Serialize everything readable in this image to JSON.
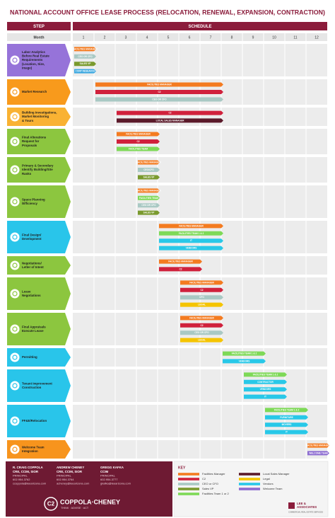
{
  "title": "NATIONAL ACCOUNT OFFICE LEASE PROCESS (RELOCATION, RENEWAL, EXPANSION, CONTRACTION)",
  "header": {
    "step": "STEP",
    "schedule": "SCHEDULE",
    "month_label": "Month",
    "months": [
      1,
      2,
      3,
      4,
      5,
      6,
      7,
      8,
      9,
      10,
      11,
      12
    ]
  },
  "steps": [
    {
      "label": [
        "Labor Analytics",
        "Before Real Estate",
        "Requirements",
        "(Location, Size,",
        "Image)"
      ],
      "color": "#9673d9",
      "bars": [
        {
          "text": "FACILITIES MANAGER",
          "color": "#f47b20",
          "from": 1,
          "to": 1
        },
        {
          "text": "CEO OR CFO",
          "color": "#a9c9c4",
          "from": 1,
          "to": 1
        },
        {
          "text": "SALES VP",
          "color": "#7a9a2e",
          "from": 1,
          "to": 1
        },
        {
          "text": "CORP RESEARCH",
          "color": "#3aa7e0",
          "from": 1,
          "to": 1
        }
      ]
    },
    {
      "label": [
        "Market Research"
      ],
      "color": "#f89a1c",
      "bars": [
        {
          "text": "FACILITIES MANAGER",
          "color": "#f47b20",
          "from": 2,
          "to": 7
        },
        {
          "text": "C2",
          "color": "#d0213c",
          "from": 2,
          "to": 7
        },
        {
          "text": "CEO OR CFO",
          "color": "#a9c9c4",
          "from": 2,
          "to": 7
        }
      ]
    },
    {
      "label": [
        "Building Investigations,",
        "Market Monitoring",
        "& Tours"
      ],
      "color": "#f9b233",
      "bars": [
        {
          "text": "C2",
          "color": "#d0213c",
          "from": 3,
          "to": 7
        },
        {
          "text": "LOCAL SALES MANAGER",
          "color": "#5b1a2a",
          "from": 3,
          "to": 7
        }
      ]
    },
    {
      "label": [
        "Final Alterations",
        "Request for",
        "Proposals"
      ],
      "color": "#8cc63f",
      "bars": [
        {
          "text": "FACILITIES MANAGER",
          "color": "#f47b20",
          "from": 3,
          "to": 4
        },
        {
          "text": "C2",
          "color": "#d0213c",
          "from": 3,
          "to": 4
        },
        {
          "text": "FACILITIES TEAM",
          "color": "#7ed957",
          "from": 3,
          "to": 4
        }
      ]
    },
    {
      "label": [
        "Primary & Secondary",
        "Identify Building/Site",
        "Ranks"
      ],
      "color": "#8cc63f",
      "bars": [
        {
          "text": "FACILITIES MANAGER",
          "color": "#f47b20",
          "from": 4,
          "to": 4
        },
        {
          "text": "CEO/CFO",
          "color": "#a9c9c4",
          "from": 4,
          "to": 4
        },
        {
          "text": "SALES VP",
          "color": "#7a9a2e",
          "from": 4,
          "to": 4
        }
      ]
    },
    {
      "label": [
        "Space Planning",
        "/Efficiency"
      ],
      "color": "#8cc63f",
      "bars": [
        {
          "text": "FACILITIES MANAGER",
          "color": "#f47b20",
          "from": 4,
          "to": 4
        },
        {
          "text": "FACILITIES TEAM",
          "color": "#7ed957",
          "from": 4,
          "to": 4
        },
        {
          "text": "CEO OR CFO",
          "color": "#a9c9c4",
          "from": 4,
          "to": 4
        },
        {
          "text": "SALES VP",
          "color": "#7a9a2e",
          "from": 4,
          "to": 4
        }
      ]
    },
    {
      "label": [
        "Final Design/",
        "Development"
      ],
      "color": "#29c5ea",
      "bars": [
        {
          "text": "FACILITIES MANAGER",
          "color": "#f47b20",
          "from": 5,
          "to": 7
        },
        {
          "text": "FACILITIES TEAM 1 & 2",
          "color": "#7ed957",
          "from": 5,
          "to": 7
        },
        {
          "text": "IT",
          "color": "#28c8e8",
          "from": 5,
          "to": 7
        },
        {
          "text": "VENDORS",
          "color": "#28c8e8",
          "from": 5,
          "to": 7
        }
      ]
    },
    {
      "label": [
        "Negotiations/",
        "Letter of Intent"
      ],
      "color": "#8cc63f",
      "bars": [
        {
          "text": "FACILITIES MANAGER",
          "color": "#f47b20",
          "from": 5,
          "to": 6
        },
        {
          "text": "C2",
          "color": "#d0213c",
          "from": 5,
          "to": 6
        }
      ]
    },
    {
      "label": [
        "Lease",
        "Negotiations"
      ],
      "color": "#8cc63f",
      "bars": [
        {
          "text": "FACILITIES MANAGER",
          "color": "#f47b20",
          "from": 6,
          "to": 7
        },
        {
          "text": "C2",
          "color": "#d0213c",
          "from": 6,
          "to": 7
        },
        {
          "text": "CFO",
          "color": "#a9c9c4",
          "from": 6,
          "to": 7
        },
        {
          "text": "LEGAL",
          "color": "#f5c400",
          "from": 6,
          "to": 7
        }
      ]
    },
    {
      "label": [
        "Final Appraisals",
        "Execute Lease"
      ],
      "color": "#8cc63f",
      "bars": [
        {
          "text": "FACILITIES MANAGER",
          "color": "#f47b20",
          "from": 6,
          "to": 7
        },
        {
          "text": "C2",
          "color": "#d0213c",
          "from": 6,
          "to": 7
        },
        {
          "text": "CEO OR CFO",
          "color": "#a9c9c4",
          "from": 6,
          "to": 7
        },
        {
          "text": "LEGAL",
          "color": "#f5c400",
          "from": 6,
          "to": 7
        }
      ]
    },
    {
      "label": [
        "Permitting"
      ],
      "color": "#29c5ea",
      "bars": [
        {
          "text": "FACILITIES TEAM 1 & 2",
          "color": "#7ed957",
          "from": 8,
          "to": 9
        },
        {
          "text": "VENDORS",
          "color": "#28c8e8",
          "from": 8,
          "to": 9
        }
      ]
    },
    {
      "label": [
        "Tenant Improvement",
        "Construction"
      ],
      "color": "#29c5ea",
      "bars": [
        {
          "text": "FACILITIES TEAM 1 & 2",
          "color": "#7ed957",
          "from": 9,
          "to": 10
        },
        {
          "text": "CONTRACTOR",
          "color": "#28c8e8",
          "from": 9,
          "to": 10
        },
        {
          "text": "VENDORS",
          "color": "#28c8e8",
          "from": 9,
          "to": 10
        },
        {
          "text": "IT",
          "color": "#28c8e8",
          "from": 9,
          "to": 10
        }
      ]
    },
    {
      "label": [
        "FF&E/Relocation"
      ],
      "color": "#29c5ea",
      "bars": [
        {
          "text": "FACILITIES TEAM 1 & 2",
          "color": "#7ed957",
          "from": 10,
          "to": 11
        },
        {
          "text": "FURNITURE",
          "color": "#28c8e8",
          "from": 10,
          "to": 11
        },
        {
          "text": "MOVERS",
          "color": "#28c8e8",
          "from": 10,
          "to": 11
        },
        {
          "text": "IT",
          "color": "#28c8e8",
          "from": 10,
          "to": 11
        }
      ]
    },
    {
      "label": [
        "Welcome Team",
        "Integration"
      ],
      "color": "#f7941d",
      "bars": [
        {
          "text": "FACILITIES MANAGER",
          "color": "#f47b20",
          "from": 12,
          "to": 12
        },
        {
          "text": "WELCOME TEAM",
          "color": "#8c6bd1",
          "from": 12,
          "to": 12
        }
      ]
    }
  ],
  "footer": {
    "contacts": [
      {
        "lines": [
          "R. CRAIG COPPOLA",
          "CRE, CCIM, SIOR",
          "PRINCIPAL",
          "602.954.3762",
          "ccoppola@leearizona.com"
        ]
      },
      {
        "lines": [
          "ANDREW CHENEY",
          "CRE, CCIM, SIOR",
          "PRINCIPAL",
          "602.954.3764",
          "acheney@leearizona.com"
        ]
      },
      {
        "lines": [
          "GREGG KAFKA",
          "CCIM",
          "PRINCIPAL",
          "602.954.3777",
          "gkafka@leearizona.com"
        ]
      }
    ],
    "logo_mark": "C2",
    "logo": "COPPOLA·CHENEY",
    "tagline": "THINK · ADVISE · ACT",
    "key_title": "KEY",
    "key": [
      {
        "label": "Facilities Manager",
        "color": "#f47b20"
      },
      {
        "label": "C2",
        "color": "#d0213c"
      },
      {
        "label": "CEO or CFO",
        "color": "#a9c9c4"
      },
      {
        "label": "Sales VP",
        "color": "#7a9a2e"
      },
      {
        "label": "Facilities Team 1 or 2",
        "color": "#7ed957"
      },
      {
        "label": "Local Sales Manager",
        "color": "#5b1a2a"
      },
      {
        "label": "Legal",
        "color": "#f5c400"
      },
      {
        "label": "Vendors",
        "color": "#28c8e8"
      },
      {
        "label": "Welcome Team",
        "color": "#8c6bd1"
      }
    ],
    "brand": [
      "LEE &",
      "ASSOCIATES"
    ],
    "brand_sub": "COMMERCIAL REAL ESTATE SERVICES"
  }
}
